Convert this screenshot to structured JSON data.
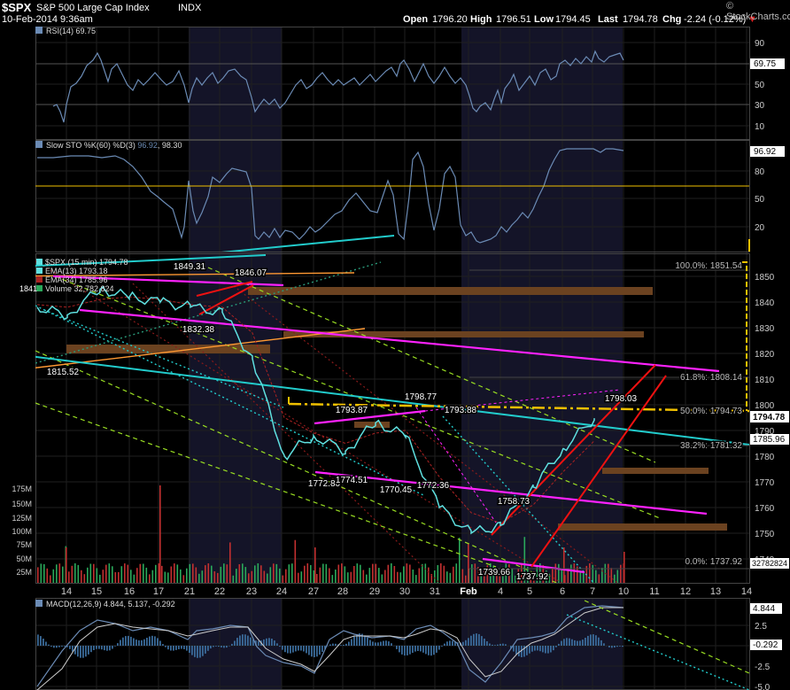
{
  "header": {
    "symbol": "$SPX",
    "name": "S&P 500 Large Cap Index",
    "exchange": "INDX",
    "datetime": "10-Feb-2014 9:36am",
    "copyright": "© StockCharts.com",
    "quote": {
      "open_label": "Open",
      "open": "1796.20",
      "high_label": "High",
      "high": "1796.51",
      "low_label": "Low",
      "low": "1794.45",
      "last_label": "Last",
      "last": "1794.78",
      "chg_label": "Chg",
      "chg": "-2.24 (-0.12%)"
    }
  },
  "colors": {
    "background": "#000000",
    "grid": "#1f1f1f",
    "shade": "#141428",
    "price": "#5fe0e0",
    "indicator": "#6b8bb5",
    "magenta": "#ff22ff",
    "cyan_trend": "#22cccc",
    "orange": "#ff9933",
    "yellow": "#f0c000",
    "red": "#ee1111",
    "green_dash": "#99dd22",
    "volume_green": "#2aa85a",
    "volume_red": "#c23030",
    "resistance_band": "#6b4220"
  },
  "panels": {
    "rsi": {
      "label": "RSI(14) 69.75",
      "value_tag": "69.75",
      "ticks": [
        "90",
        "70",
        "50",
        "30",
        "10"
      ]
    },
    "sto": {
      "label_name": "Slow STO %K(60) %D(3)",
      "label_k": "96.92",
      "label_d": "98.30",
      "value_tag": "96.92",
      "ticks": [
        "80",
        "50",
        "20"
      ]
    },
    "price": {
      "legend": [
        "$SPX (15 min) 1794.78",
        "EMA(13) 1793.18",
        "EMA(34) 1785.96",
        "Volume 32,782,824"
      ],
      "value_tags": {
        "last": "1794.78",
        "ema34": "1785.96",
        "volume": "32782824"
      },
      "ticks": [
        "1850",
        "1840",
        "1830",
        "1820",
        "1810",
        "1800",
        "1790",
        "1780",
        "1770",
        "1760",
        "1750",
        "1740"
      ],
      "volume_ticks": [
        "175M",
        "150M",
        "125M",
        "100M",
        "75M",
        "50M",
        "25M"
      ],
      "left_edge_label": "1841",
      "annotations": [
        "1849.31",
        "1846.07",
        "1832.38",
        "1815.52",
        "1793.87",
        "1798.77",
        "1793.88",
        "1772.80",
        "1774.51",
        "1770.45",
        "1772.36",
        "1758.73",
        "1739.66",
        "1737.92",
        "1798.03"
      ],
      "fib_levels": [
        "100.0%: 1851.54",
        "61.8%: 1808.14",
        "50.0%: 1794.73",
        "38.2%: 1781.32",
        "0.0%: 1737.92"
      ]
    },
    "macd": {
      "label": "MACD(12,26,9) 4.844, 5.137, -0.292",
      "value_tags": [
        "4.844",
        "-0.292"
      ],
      "ticks": [
        "2.5",
        "0.0",
        "-2.5",
        "-5.0"
      ]
    }
  },
  "x_axis": {
    "labels": [
      "14",
      "15",
      "16",
      "17",
      "21",
      "22",
      "23",
      "24",
      "27",
      "28",
      "29",
      "30",
      "31",
      "Feb",
      "4",
      "5",
      "6",
      "7",
      "10",
      "11",
      "12",
      "13",
      "14"
    ]
  },
  "chart_data": {
    "type": "line",
    "title": "$SPX S&P 500 Large Cap Index INDX",
    "interval": "15 min",
    "x": [
      "14",
      "15",
      "16",
      "17",
      "21",
      "22",
      "23",
      "24",
      "27",
      "28",
      "29",
      "30",
      "31",
      "Feb",
      "4",
      "5",
      "6",
      "7",
      "10"
    ],
    "ylim": [
      1735,
      1858
    ],
    "series": [
      {
        "name": "$SPX (15 min)",
        "values": [
          1838,
          1835,
          1845,
          1842,
          1840,
          1838,
          1836,
          1818,
          1780,
          1788,
          1782,
          1793,
          1788,
          1760,
          1750,
          1753,
          1768,
          1783,
          1794.78
        ]
      },
      {
        "name": "EMA(13)",
        "values": [
          1839,
          1837,
          1843,
          1842,
          1840,
          1838,
          1837,
          1822,
          1785,
          1787,
          1783,
          1791,
          1789,
          1765,
          1752,
          1752,
          1765,
          1780,
          1793.18
        ]
      },
      {
        "name": "EMA(34)",
        "values": [
          1839,
          1838,
          1841,
          1842,
          1841,
          1839,
          1838,
          1828,
          1795,
          1789,
          1785,
          1789,
          1790,
          1772,
          1758,
          1754,
          1761,
          1774,
          1785.96
        ]
      }
    ],
    "fibonacci": [
      {
        "level": "100.0%",
        "value": 1851.54
      },
      {
        "level": "61.8%",
        "value": 1808.14
      },
      {
        "level": "50.0%",
        "value": 1794.73
      },
      {
        "level": "38.2%",
        "value": 1781.32
      },
      {
        "level": "0.0%",
        "value": 1737.92
      }
    ]
  }
}
